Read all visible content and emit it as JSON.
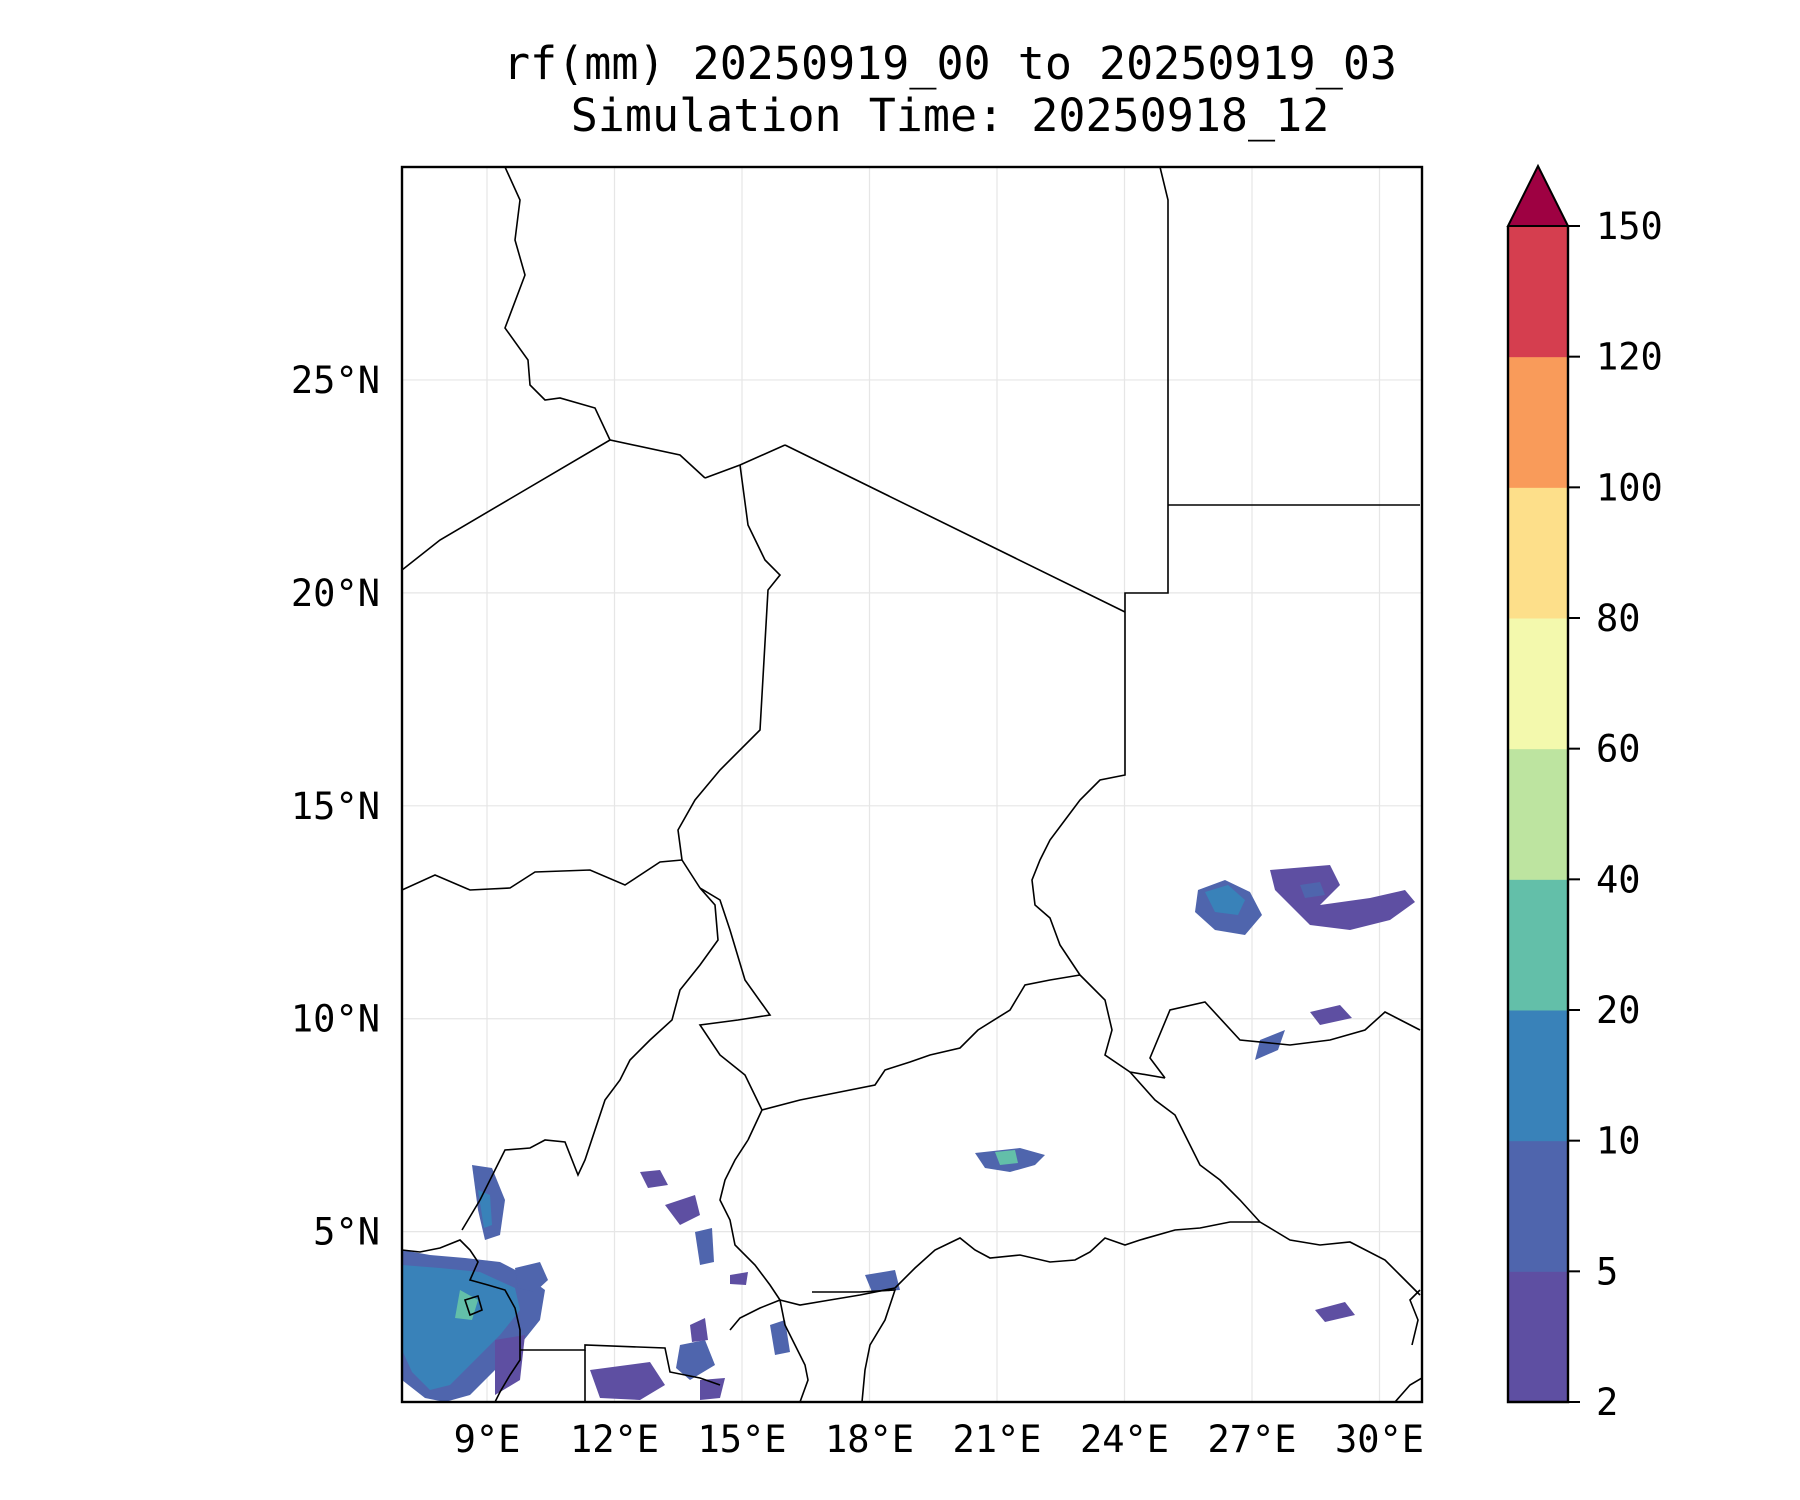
{
  "title": {
    "line1": "rf(mm) 20250919_00 to 20250919_03",
    "line2": "Simulation Time: 20250918_12"
  },
  "map": {
    "lon_range": [
      7.0,
      31.0
    ],
    "lat_range": [
      1.0,
      30.0
    ],
    "lat_ticks": [
      {
        "value": 25,
        "label": "25°N"
      },
      {
        "value": 20,
        "label": "20°N"
      },
      {
        "value": 15,
        "label": "15°N"
      },
      {
        "value": 10,
        "label": "10°N"
      },
      {
        "value": 5,
        "label": "5°N"
      }
    ],
    "lon_ticks": [
      {
        "value": 9,
        "label": "9°E"
      },
      {
        "value": 12,
        "label": "12°E"
      },
      {
        "value": 15,
        "label": "15°E"
      },
      {
        "value": 18,
        "label": "18°E"
      },
      {
        "value": 21,
        "label": "21°E"
      },
      {
        "value": 24,
        "label": "24°E"
      },
      {
        "value": 27,
        "label": "27°E"
      },
      {
        "value": 30,
        "label": "30°E"
      }
    ],
    "gridlines": true
  },
  "colorbar": {
    "levels": [
      {
        "value": 2,
        "label": "2"
      },
      {
        "value": 5,
        "label": "5"
      },
      {
        "value": 10,
        "label": "10"
      },
      {
        "value": 20,
        "label": "20"
      },
      {
        "value": 40,
        "label": "40"
      },
      {
        "value": 60,
        "label": "60"
      },
      {
        "value": 80,
        "label": "80"
      },
      {
        "value": 100,
        "label": "100"
      },
      {
        "value": 120,
        "label": "120"
      },
      {
        "value": 150,
        "label": "150"
      }
    ],
    "colors": [
      "#5e4fa2",
      "#4f65ad",
      "#3982b9",
      "#63bfa9",
      "#bde4a0",
      "#f3f9ad",
      "#fddf8a",
      "#f99b5a",
      "#d53e4f"
    ],
    "extend_color": "#9e0142",
    "extend": "max"
  }
}
